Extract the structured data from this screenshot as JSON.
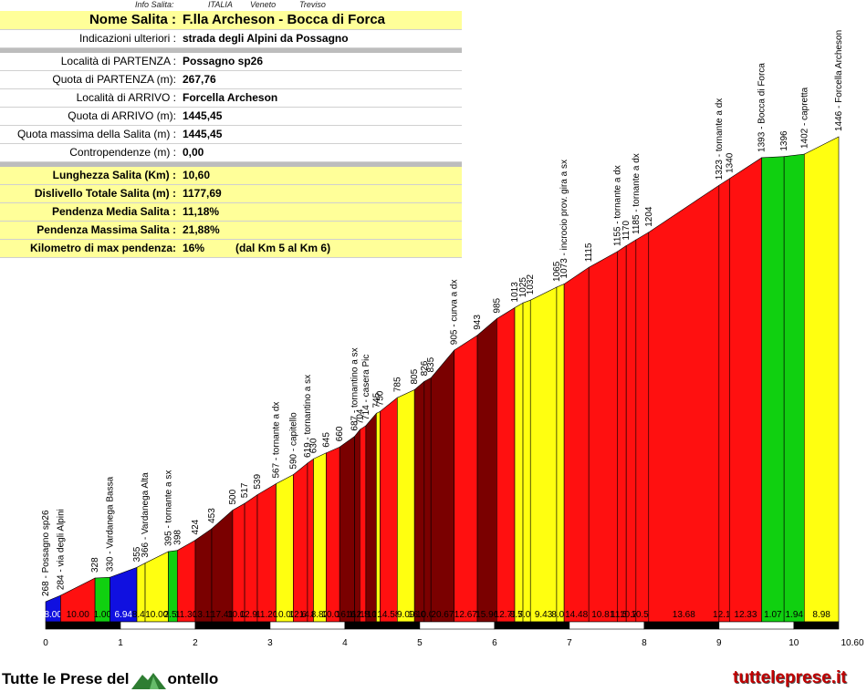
{
  "info": {
    "label": "Info Salita:",
    "country": "ITALIA",
    "region": "Veneto",
    "province": "Treviso"
  },
  "table": {
    "title": {
      "label": "Nome Salita :",
      "value": "F.lla Archeson - Bocca di Forca"
    },
    "rows_a": [
      {
        "label": "Indicazioni ulteriori :",
        "value": "strada degli Alpini da Possagno"
      }
    ],
    "rows_b": [
      {
        "label": "Località di PARTENZA :",
        "value": "Possagno sp26"
      },
      {
        "label": "Quota di PARTENZA (m):",
        "value": "267,76"
      },
      {
        "label": "Località di ARRIVO :",
        "value": "Forcella Archeson"
      },
      {
        "label": "Quota di ARRIVO (m):",
        "value": "1445,45"
      },
      {
        "label": "Quota massima della Salita (m) :",
        "value": "1445,45"
      },
      {
        "label": "Contropendenze (m) :",
        "value": "0,00"
      }
    ],
    "rows_c": [
      {
        "label": "Lunghezza Salita (Km) :",
        "value": "10,60"
      },
      {
        "label": "Dislivello Totale Salita (m) :",
        "value": "1177,69"
      },
      {
        "label": "Pendenza Media Salita :",
        "value": "11,18%"
      },
      {
        "label": "Pendenza Massima Salita :",
        "value": "21,88%"
      },
      {
        "label": "Kilometro di max pendenza:",
        "value": "16%",
        "extra": "(dal Km 5 al Km 6)"
      }
    ]
  },
  "chart_data": {
    "type": "area",
    "xlim": [
      0,
      10.6
    ],
    "x_ticks": [
      "0",
      "1",
      "2",
      "3",
      "4",
      "5",
      "6",
      "7",
      "8",
      "9",
      "10",
      "10.60"
    ],
    "points": [
      {
        "km": 0.0,
        "alt": 268,
        "label": "268 - Possagno sp26"
      },
      {
        "km": 0.2,
        "alt": 284,
        "label": "284 - via degli Alpini"
      },
      {
        "km": 0.66,
        "alt": 328,
        "label": "328"
      },
      {
        "km": 0.86,
        "alt": 330,
        "label": "330 - Vardanega Bassa"
      },
      {
        "km": 1.22,
        "alt": 355,
        "label": "355"
      },
      {
        "km": 1.33,
        "alt": 366,
        "label": "366 - Vardanega Alta"
      },
      {
        "km": 1.64,
        "alt": 395,
        "label": "395 - tornante a sx"
      },
      {
        "km": 1.76,
        "alt": 398,
        "label": "398"
      },
      {
        "km": 2.0,
        "alt": 424,
        "label": "424"
      },
      {
        "km": 2.22,
        "alt": 453,
        "label": "453"
      },
      {
        "km": 2.5,
        "alt": 500,
        "label": "500"
      },
      {
        "km": 2.66,
        "alt": 517,
        "label": "517"
      },
      {
        "km": 2.83,
        "alt": 539,
        "label": "539"
      },
      {
        "km": 3.08,
        "alt": 567,
        "label": "567 - tornante a dx"
      },
      {
        "km": 3.31,
        "alt": 590,
        "label": "590 - capitello"
      },
      {
        "km": 3.5,
        "alt": 619,
        "label": "619 - tornantino a sx"
      },
      {
        "km": 3.58,
        "alt": 630,
        "label": "630"
      },
      {
        "km": 3.75,
        "alt": 645,
        "label": "645"
      },
      {
        "km": 3.93,
        "alt": 660,
        "label": "660"
      },
      {
        "km": 4.13,
        "alt": 687,
        "label": "687 - tornantino a sx"
      },
      {
        "km": 4.2,
        "alt": 704,
        "label": "704"
      },
      {
        "km": 4.28,
        "alt": 714,
        "label": "714 - casera Pic"
      },
      {
        "km": 4.42,
        "alt": 745,
        "label": "745"
      },
      {
        "km": 4.47,
        "alt": 750,
        "label": "750"
      },
      {
        "km": 4.7,
        "alt": 785,
        "label": "785"
      },
      {
        "km": 4.93,
        "alt": 805,
        "label": "805"
      },
      {
        "km": 5.06,
        "alt": 826,
        "label": "826"
      },
      {
        "km": 5.15,
        "alt": 835,
        "label": "835"
      },
      {
        "km": 5.46,
        "alt": 905,
        "label": "905 - curva a dx"
      },
      {
        "km": 5.77,
        "alt": 943,
        "label": "943"
      },
      {
        "km": 6.03,
        "alt": 985,
        "label": "985"
      },
      {
        "km": 6.27,
        "alt": 1013,
        "label": "1013"
      },
      {
        "km": 6.38,
        "alt": 1025,
        "label": "1025"
      },
      {
        "km": 6.48,
        "alt": 1032,
        "label": "1032"
      },
      {
        "km": 6.83,
        "alt": 1065,
        "label": "1065"
      },
      {
        "km": 6.93,
        "alt": 1073,
        "label": "1073 - incrocio prov. gira a sx"
      },
      {
        "km": 7.26,
        "alt": 1115,
        "label": "1115"
      },
      {
        "km": 7.64,
        "alt": 1155,
        "label": "1155 - tornante a dx"
      },
      {
        "km": 7.76,
        "alt": 1170,
        "label": "1170"
      },
      {
        "km": 7.89,
        "alt": 1185,
        "label": "1185 - tornante a dx"
      },
      {
        "km": 8.06,
        "alt": 1204,
        "label": "1204"
      },
      {
        "km": 9.0,
        "alt": 1323,
        "label": "1323 - tornante a dx"
      },
      {
        "km": 9.14,
        "alt": 1340,
        "label": "1340"
      },
      {
        "km": 9.57,
        "alt": 1393,
        "label": "1393 - Bocca di Forca"
      },
      {
        "km": 9.87,
        "alt": 1396,
        "label": "1396"
      },
      {
        "km": 10.14,
        "alt": 1402,
        "label": "1402 - capretta"
      },
      {
        "km": 10.6,
        "alt": 1446,
        "label": "1446 - Forcella Archeson"
      }
    ],
    "segments": [
      {
        "slope": "8.00",
        "color": "#1010e0"
      },
      {
        "slope": "10.00",
        "color": "#ff1010"
      },
      {
        "slope": "1.00",
        "color": "#10d010"
      },
      {
        "slope": "6.94",
        "color": "#1010e0"
      },
      {
        "slope": "8.46",
        "color": "#ffff10"
      },
      {
        "slope": "10.00",
        "color": "#ffff10"
      },
      {
        "slope": "2.50",
        "color": "#10d010"
      },
      {
        "slope": "11.30",
        "color": "#ff1010"
      },
      {
        "slope": "13.11",
        "color": "#7a0000"
      },
      {
        "slope": "17.41",
        "color": "#7a0000"
      },
      {
        "slope": "10.00",
        "color": "#ff1010"
      },
      {
        "slope": "12.94",
        "color": "#ff1010"
      },
      {
        "slope": "11.20",
        "color": "#ff1010"
      },
      {
        "slope": "10.00",
        "color": "#ffff10"
      },
      {
        "slope": "12.61",
        "color": "#ff1010"
      },
      {
        "slope": "14.80",
        "color": "#ff1010"
      },
      {
        "slope": "8.82",
        "color": "#ffff10"
      },
      {
        "slope": "10.00",
        "color": "#ff1010"
      },
      {
        "slope": "16.16",
        "color": "#7a0000"
      },
      {
        "slope": "16.00",
        "color": "#7a0000"
      },
      {
        "slope": "12.50",
        "color": "#ff1010"
      },
      {
        "slope": "18.10",
        "color": "#7a0000"
      },
      {
        "slope": "10.00",
        "color": "#ffff10"
      },
      {
        "slope": "14.58",
        "color": "#ff1010"
      },
      {
        "slope": "9.09",
        "color": "#ffff10"
      },
      {
        "slope": "16.00",
        "color": "#7a0000"
      },
      {
        "slope": "10.00",
        "color": "#7a0000"
      },
      {
        "slope": "20.67",
        "color": "#7a0000"
      },
      {
        "slope": "12.67",
        "color": "#ff1010"
      },
      {
        "slope": "15.96",
        "color": "#7a0000"
      },
      {
        "slope": "12.73",
        "color": "#ff1010"
      },
      {
        "slope": "8.57",
        "color": "#ffff10"
      },
      {
        "slope": "7.00",
        "color": "#ffff10"
      },
      {
        "slope": "9.43",
        "color": "#ffff10"
      },
      {
        "slope": "8.00",
        "color": "#ffff10"
      },
      {
        "slope": "14.48",
        "color": "#ff1010"
      },
      {
        "slope": "10.81",
        "color": "#ff1010"
      },
      {
        "slope": "11.54",
        "color": "#ff1010"
      },
      {
        "slope": "10.71",
        "color": "#ff1010"
      },
      {
        "slope": "10.56",
        "color": "#ff1010"
      },
      {
        "slope": "13.68",
        "color": "#ff1010"
      },
      {
        "slope": "12.14",
        "color": "#ff1010"
      },
      {
        "slope": "12.33",
        "color": "#ff1010"
      },
      {
        "slope": "1.07",
        "color": "#10d010"
      },
      {
        "slope": "1.94",
        "color": "#10d010"
      },
      {
        "slope": "8.98",
        "color": "#ffff10"
      }
    ]
  },
  "footer": {
    "brand_left_1": "Tutte le Prese del",
    "brand_left_2": "ontello",
    "brand_right": "tutteleprese.it"
  }
}
